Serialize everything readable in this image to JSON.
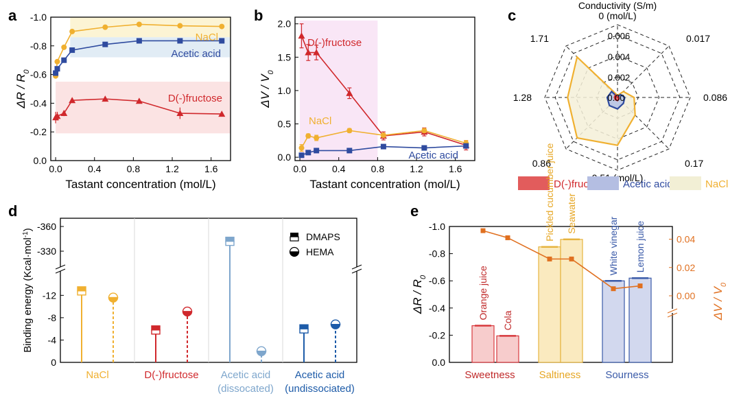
{
  "colors": {
    "nacl": "#F0B030",
    "acetic": "#2F4B9F",
    "fructose": "#D0282C",
    "acetic_light": "#7EA6CC",
    "acetic_dark": "#1D5BA8",
    "dv_line": "#E07020"
  },
  "panel_labels": {
    "a": "a",
    "b": "b",
    "c": "c",
    "d": "d",
    "e": "e"
  },
  "panel_a": {
    "ylabel_base": "ΔR / R",
    "ylabel_sub": "0",
    "xlabel": "Tastant concentration (mol/L)",
    "xticks": [
      "0.0",
      "0.4",
      "0.8",
      "1.2",
      "1.6"
    ],
    "yticks": [
      "0.0",
      "-0.2",
      "-0.4",
      "-0.6",
      "-0.8",
      "-1.0"
    ],
    "series_labels": {
      "nacl": "NaCl",
      "acetic": "Acetic acid",
      "fructose": "D(-)fructose"
    }
  },
  "panel_b": {
    "ylabel_base": "ΔV / V",
    "ylabel_sub": "0",
    "xlabel": "Tastant concentration (mol/L)",
    "xticks": [
      "0.0",
      "0.4",
      "0.8",
      "1.2",
      "1.6"
    ],
    "yticks": [
      "0.0",
      "0.5",
      "1.0",
      "1.5",
      "2.0"
    ],
    "series_labels": {
      "nacl": "NaCl",
      "acetic": "Acetic acid",
      "fructose": "D(-)fructose"
    }
  },
  "panel_c": {
    "title": "Conductivity (S/m)",
    "concentration_labels": [
      "0 (mol/L)",
      "0.017",
      "0.086",
      "0.17",
      "0.51 (mol/L)",
      "0.86",
      "1.28",
      "1.71"
    ],
    "radial_ticks": [
      "0.002",
      "0.004",
      "0.006"
    ],
    "center_tick": "0.00",
    "legend": [
      "D(-)fructose",
      "Acetic acid",
      "NaCl"
    ]
  },
  "panel_d": {
    "ylabel": "Binding energy (Kcal·mol",
    "ylabel_sup": "-1",
    "ylabel_tail": ")",
    "yticks_top": [
      "-360",
      "-330"
    ],
    "yticks_bottom": [
      "-12",
      "-8",
      "-4",
      "0"
    ],
    "legend": [
      "DMAPS",
      "HEMA"
    ],
    "categories": [
      {
        "line1": "NaCl",
        "line2": ""
      },
      {
        "line1": "D(-)fructose",
        "line2": ""
      },
      {
        "line1": "Acetic acid",
        "line2": "(dissocated)"
      },
      {
        "line1": "Acetic acid",
        "line2": "(undissociated)"
      }
    ]
  },
  "panel_e": {
    "ylabel_left_base": "ΔR / R",
    "ylabel_left_sub": "0",
    "ylabel_right_base": "ΔV / V",
    "ylabel_right_sub": "0",
    "yticks_left": [
      "0.0",
      "-0.2",
      "-0.4",
      "-0.6",
      "-0.8",
      "-1.0"
    ],
    "yticks_right": [
      "0.00",
      "0.02",
      "0.04"
    ],
    "bars": [
      "Orange juice",
      "Cola",
      "Pickled cucumber juice",
      "Seawater",
      "White vinegar",
      "Lemon juice"
    ],
    "groups": [
      "Sweetness",
      "Saltiness",
      "Sourness"
    ]
  },
  "chart_data": [
    {
      "type": "line",
      "panel": "a",
      "xlabel": "Tastant concentration (mol/L)",
      "ylabel": "ΔR / R0",
      "xlim": [
        -0.05,
        1.8
      ],
      "ylim": [
        0,
        -1.0
      ],
      "series": [
        {
          "name": "NaCl",
          "x": [
            0,
            0.017,
            0.086,
            0.17,
            0.51,
            0.86,
            1.28,
            1.71
          ],
          "y": [
            -0.59,
            -0.69,
            -0.79,
            -0.9,
            -0.93,
            -0.95,
            -0.94,
            -0.935
          ]
        },
        {
          "name": "Acetic acid",
          "x": [
            0,
            0.017,
            0.086,
            0.17,
            0.51,
            0.86,
            1.28,
            1.71
          ],
          "y": [
            -0.61,
            -0.64,
            -0.7,
            -0.77,
            -0.81,
            -0.835,
            -0.835,
            -0.835
          ]
        },
        {
          "name": "D(-)fructose",
          "x": [
            0,
            0.017,
            0.086,
            0.17,
            0.51,
            0.86,
            1.28,
            1.71
          ],
          "y": [
            -0.3,
            -0.31,
            -0.33,
            -0.42,
            -0.43,
            -0.415,
            -0.33,
            -0.325
          ],
          "err": [
            0.04,
            0.03,
            0.02,
            0.015,
            0.015,
            0.015,
            0.04,
            0.015
          ]
        }
      ]
    },
    {
      "type": "line",
      "panel": "b",
      "xlabel": "Tastant concentration (mol/L)",
      "ylabel": "ΔV / V0",
      "xlim": [
        -0.05,
        1.8
      ],
      "ylim": [
        -0.05,
        2.1
      ],
      "series": [
        {
          "name": "D(-)fructose",
          "x": [
            0.017,
            0.086,
            0.17,
            0.51,
            0.86,
            1.28,
            1.71
          ],
          "y": [
            1.82,
            1.57,
            1.57,
            0.96,
            0.32,
            0.38,
            0.18
          ],
          "err": [
            0.18,
            0.12,
            0.11,
            0.08,
            0.06,
            0.06,
            0.07
          ]
        },
        {
          "name": "NaCl",
          "x": [
            0.017,
            0.086,
            0.17,
            0.51,
            0.86,
            1.28,
            1.71
          ],
          "y": [
            0.14,
            0.32,
            0.29,
            0.4,
            0.33,
            0.4,
            0.21
          ],
          "err": [
            0.05,
            0.03,
            0.04,
            0.03,
            0.03,
            0.03,
            0.04
          ]
        },
        {
          "name": "Acetic acid",
          "x": [
            0.017,
            0.086,
            0.17,
            0.51,
            0.86,
            1.28,
            1.71
          ],
          "y": [
            0.03,
            0.07,
            0.1,
            0.1,
            0.16,
            0.14,
            0.17
          ],
          "err": [
            0.02,
            0.02,
            0.02,
            0.02,
            0.02,
            0.02,
            0.02
          ]
        }
      ]
    },
    {
      "type": "radar",
      "panel": "c",
      "title": "Conductivity (S/m)",
      "axes": [
        "0",
        "0.017",
        "0.086",
        "0.17",
        "0.51",
        "0.86",
        "1.28",
        "1.71"
      ],
      "rmax": 0.007,
      "series": [
        {
          "name": "NaCl",
          "values": [
            0.0002,
            0.0008,
            0.0016,
            0.0024,
            0.0046,
            0.0055,
            0.0048,
            0.0055
          ]
        },
        {
          "name": "Acetic acid",
          "values": [
            5e-05,
            0.0004,
            0.0007,
            0.0008,
            0.0011,
            0.0011,
            0.001,
            0.0008
          ]
        },
        {
          "name": "D(-)fructose",
          "values": [
            2e-05,
            5e-05,
            0.0001,
            0.0002,
            0.0003,
            0.0003,
            0.0003,
            0.0003
          ]
        }
      ]
    },
    {
      "type": "lollipop",
      "panel": "d",
      "ylabel": "Binding energy (Kcal·mol-1)",
      "categories": [
        "NaCl",
        "D(-)fructose",
        "Acetic acid (dissocated)",
        "Acetic acid (undissociated)"
      ],
      "series": [
        {
          "name": "DMAPS",
          "values": [
            -12.8,
            -5.8,
            -342,
            -6.0
          ]
        },
        {
          "name": "HEMA",
          "values": [
            -11.6,
            -9.1,
            -2.0,
            -6.8
          ]
        }
      ]
    },
    {
      "type": "bar",
      "panel": "e",
      "categories": [
        "Orange juice",
        "Cola",
        "Pickled cucumber juice",
        "Seawater",
        "White vinegar",
        "Lemon juice"
      ],
      "groups": [
        "Sweetness",
        "Sweetness",
        "Saltiness",
        "Saltiness",
        "Sourness",
        "Sourness"
      ],
      "ylabel": "ΔR / R0",
      "ylim": [
        0,
        -1.0
      ],
      "series": [
        {
          "name": "ΔR / R0",
          "values": [
            -0.27,
            -0.195,
            -0.85,
            -0.905,
            -0.6,
            -0.62
          ]
        },
        {
          "name": "ΔV / V0",
          "values": [
            0.046,
            0.041,
            0.026,
            0.026,
            0.005,
            0.007
          ]
        }
      ]
    }
  ]
}
